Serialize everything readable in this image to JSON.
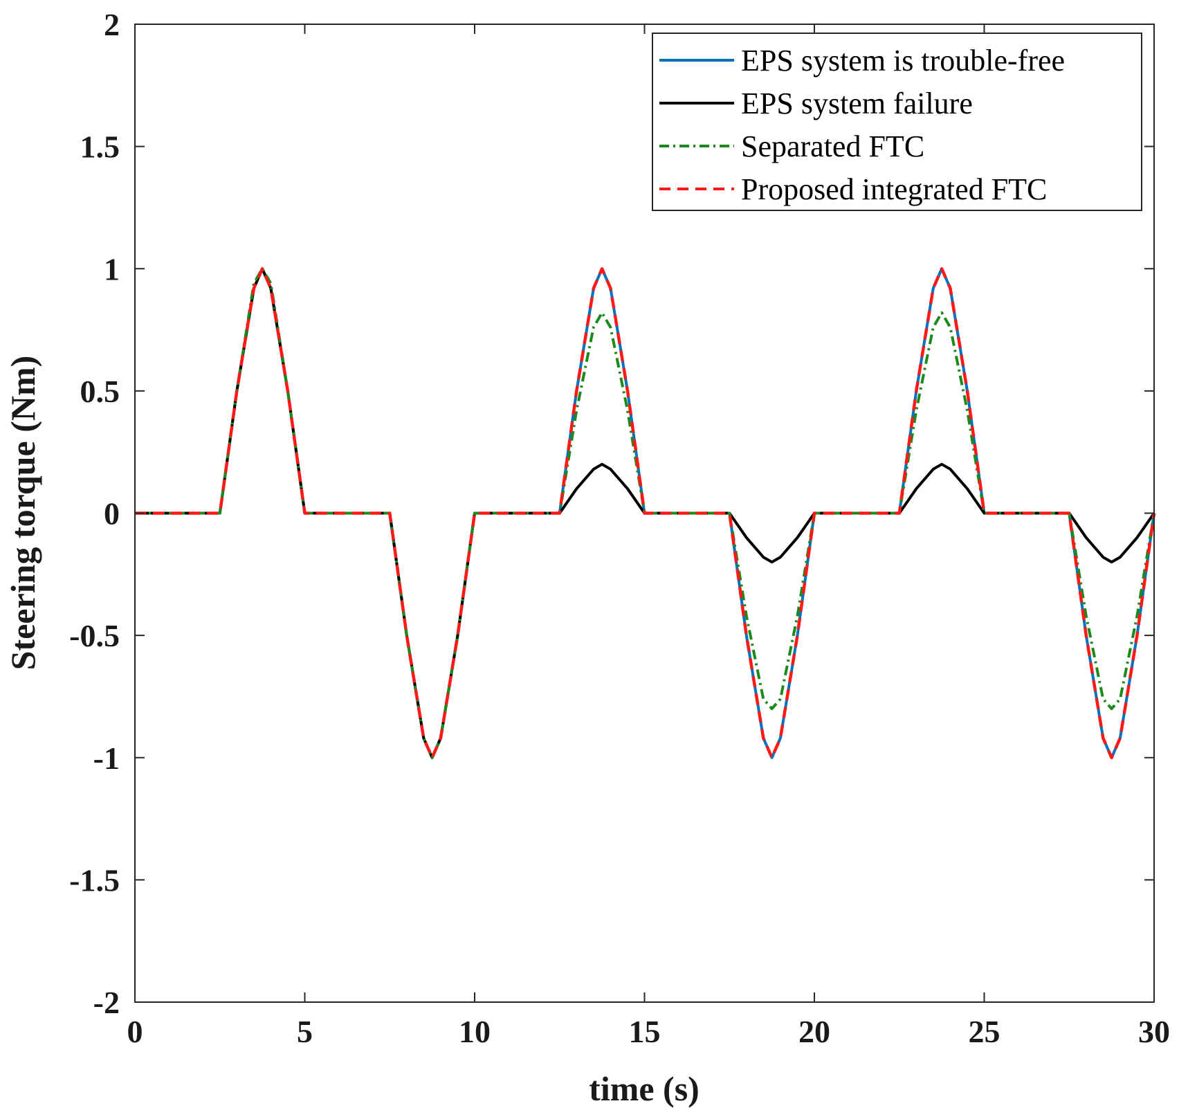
{
  "chart_data": {
    "type": "line",
    "title": "",
    "xlabel": "time (s)",
    "ylabel": "Steering torque (Nm)",
    "xlim": [
      0,
      30
    ],
    "ylim": [
      -2,
      2
    ],
    "xticks": [
      0,
      5,
      10,
      15,
      20,
      25,
      30
    ],
    "xtick_labels": [
      "0",
      "5",
      "10",
      "15",
      "20",
      "25",
      "30"
    ],
    "yticks": [
      -2,
      -1.5,
      -1,
      -0.5,
      0,
      0.5,
      1,
      1.5,
      2
    ],
    "ytick_labels": [
      "-2",
      "-1.5",
      "-1",
      "-0.5",
      "0",
      "0.5",
      "1",
      "1.5",
      "2"
    ],
    "grid": false,
    "legend_position": "top-right",
    "x": [
      0,
      2.5,
      3.0,
      3.5,
      3.75,
      4.0,
      4.5,
      5.0,
      7.5,
      8.0,
      8.5,
      8.75,
      9.0,
      9.5,
      10.0,
      12.5,
      13.0,
      13.5,
      13.75,
      14.0,
      14.5,
      15.0,
      17.5,
      18.0,
      18.5,
      18.75,
      19.0,
      19.5,
      20.0,
      22.5,
      23.0,
      23.5,
      23.75,
      24.0,
      24.5,
      25.0,
      27.5,
      28.0,
      28.5,
      28.75,
      29.0,
      29.5,
      30.0
    ],
    "series": [
      {
        "name": "EPS system is trouble-free",
        "color": "#0072BD",
        "style": "solid",
        "values": [
          0,
          0,
          0.5,
          0.92,
          1.0,
          0.92,
          0.5,
          0,
          0,
          -0.5,
          -0.92,
          -1.0,
          -0.92,
          -0.5,
          0,
          0,
          0.5,
          0.92,
          1.0,
          0.92,
          0.5,
          0,
          0,
          -0.5,
          -0.92,
          -1.0,
          -0.92,
          -0.5,
          0,
          0,
          0.5,
          0.92,
          1.0,
          0.92,
          0.5,
          0,
          0,
          -0.5,
          -0.92,
          -1.0,
          -0.92,
          -0.5,
          0
        ]
      },
      {
        "name": "EPS system failure",
        "color": "#000000",
        "style": "solid",
        "values": [
          0,
          0,
          0.5,
          0.92,
          1.0,
          0.92,
          0.5,
          0,
          0,
          -0.5,
          -0.92,
          -1.0,
          -0.92,
          -0.5,
          0,
          0,
          0.1,
          0.18,
          0.2,
          0.18,
          0.1,
          0,
          0,
          -0.1,
          -0.18,
          -0.2,
          -0.18,
          -0.1,
          0,
          0,
          0.1,
          0.18,
          0.2,
          0.18,
          0.1,
          0,
          0,
          -0.1,
          -0.18,
          -0.2,
          -0.18,
          -0.1,
          0
        ]
      },
      {
        "name": "Separated FTC",
        "color": "#1B8A1B",
        "style": "dashdot",
        "values": [
          0,
          0,
          0.5,
          0.94,
          1.0,
          0.94,
          0.5,
          0,
          0,
          -0.5,
          -0.92,
          -1.0,
          -0.92,
          -0.5,
          0,
          0,
          0.42,
          0.76,
          0.82,
          0.76,
          0.42,
          0,
          0,
          -0.42,
          -0.76,
          -0.8,
          -0.76,
          -0.42,
          0,
          0,
          0.42,
          0.76,
          0.82,
          0.76,
          0.42,
          0,
          0,
          -0.42,
          -0.76,
          -0.8,
          -0.76,
          -0.42,
          0
        ]
      },
      {
        "name": "Proposed integrated FTC",
        "color": "#FF1A1A",
        "style": "dashed",
        "values": [
          0,
          0,
          0.5,
          0.92,
          1.0,
          0.92,
          0.5,
          0,
          0,
          -0.5,
          -0.92,
          -1.0,
          -0.92,
          -0.5,
          0,
          0,
          0.5,
          0.92,
          1.0,
          0.92,
          0.5,
          0,
          0,
          -0.5,
          -0.92,
          -1.0,
          -0.92,
          -0.5,
          0,
          0,
          0.5,
          0.92,
          1.0,
          0.92,
          0.5,
          0,
          0,
          -0.5,
          -0.92,
          -1.0,
          -0.92,
          -0.5,
          0
        ]
      }
    ]
  }
}
